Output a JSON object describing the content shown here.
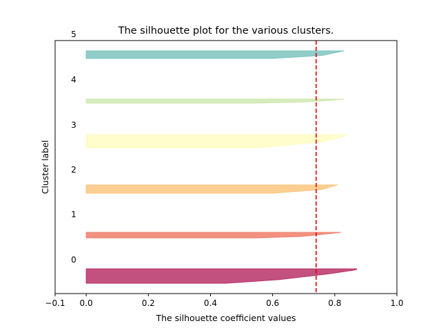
{
  "chart_data": {
    "type": "area",
    "title": "The silhouette plot for the various clusters.",
    "xlabel": "The silhouette coefficient values",
    "ylabel": "Cluster label",
    "xlim": [
      -0.1,
      1.0
    ],
    "x_ticks": [
      -0.1,
      0.0,
      0.2,
      0.4,
      0.6,
      0.8,
      1.0
    ],
    "x_tick_labels": [
      "−0.1",
      "0.0",
      "0.2",
      "0.4",
      "0.6",
      "0.8",
      "1.0"
    ],
    "cluster_labels": [
      "0",
      "1",
      "2",
      "3",
      "4",
      "5"
    ],
    "grid": false,
    "average_silhouette": 0.74,
    "average_line_color": "#dd0000",
    "clusters": [
      {
        "label": "0",
        "color": "#b8336a",
        "sizeRange": [
          0.0,
          1.0
        ],
        "profile": [
          [
            0.0,
            0.87
          ],
          [
            0.05,
            0.87
          ],
          [
            0.1,
            0.86
          ],
          [
            0.35,
            0.78
          ],
          [
            0.75,
            0.62
          ],
          [
            1.0,
            0.45
          ]
        ]
      },
      {
        "label": "1",
        "color": "#f07e6a",
        "sizeRange": [
          0.0,
          1.0
        ],
        "profile": [
          [
            0.0,
            0.82
          ],
          [
            0.3,
            0.77
          ],
          [
            0.75,
            0.69
          ],
          [
            1.0,
            0.55
          ]
        ]
      },
      {
        "label": "2",
        "color": "#fdc57e",
        "sizeRange": [
          0.0,
          1.0
        ],
        "profile": [
          [
            0.0,
            0.81
          ],
          [
            0.2,
            0.79
          ],
          [
            0.55,
            0.76
          ],
          [
            1.0,
            0.6
          ]
        ]
      },
      {
        "label": "3",
        "color": "#fefdc2",
        "sizeRange": [
          0.0,
          1.0
        ],
        "profile": [
          [
            0.0,
            0.84
          ],
          [
            0.2,
            0.82
          ],
          [
            0.55,
            0.76
          ],
          [
            1.0,
            0.55
          ]
        ]
      },
      {
        "label": "4",
        "color": "#cfe9b2",
        "sizeRange": [
          0.0,
          1.0
        ],
        "profile": [
          [
            0.0,
            0.83
          ],
          [
            0.3,
            0.79
          ],
          [
            0.75,
            0.7
          ],
          [
            1.0,
            0.55
          ]
        ]
      },
      {
        "label": "5",
        "color": "#7dc4bf",
        "sizeRange": [
          0.0,
          1.0
        ],
        "profile": [
          [
            0.0,
            0.83
          ],
          [
            0.25,
            0.8
          ],
          [
            0.6,
            0.76
          ],
          [
            1.0,
            0.6
          ]
        ]
      }
    ]
  }
}
